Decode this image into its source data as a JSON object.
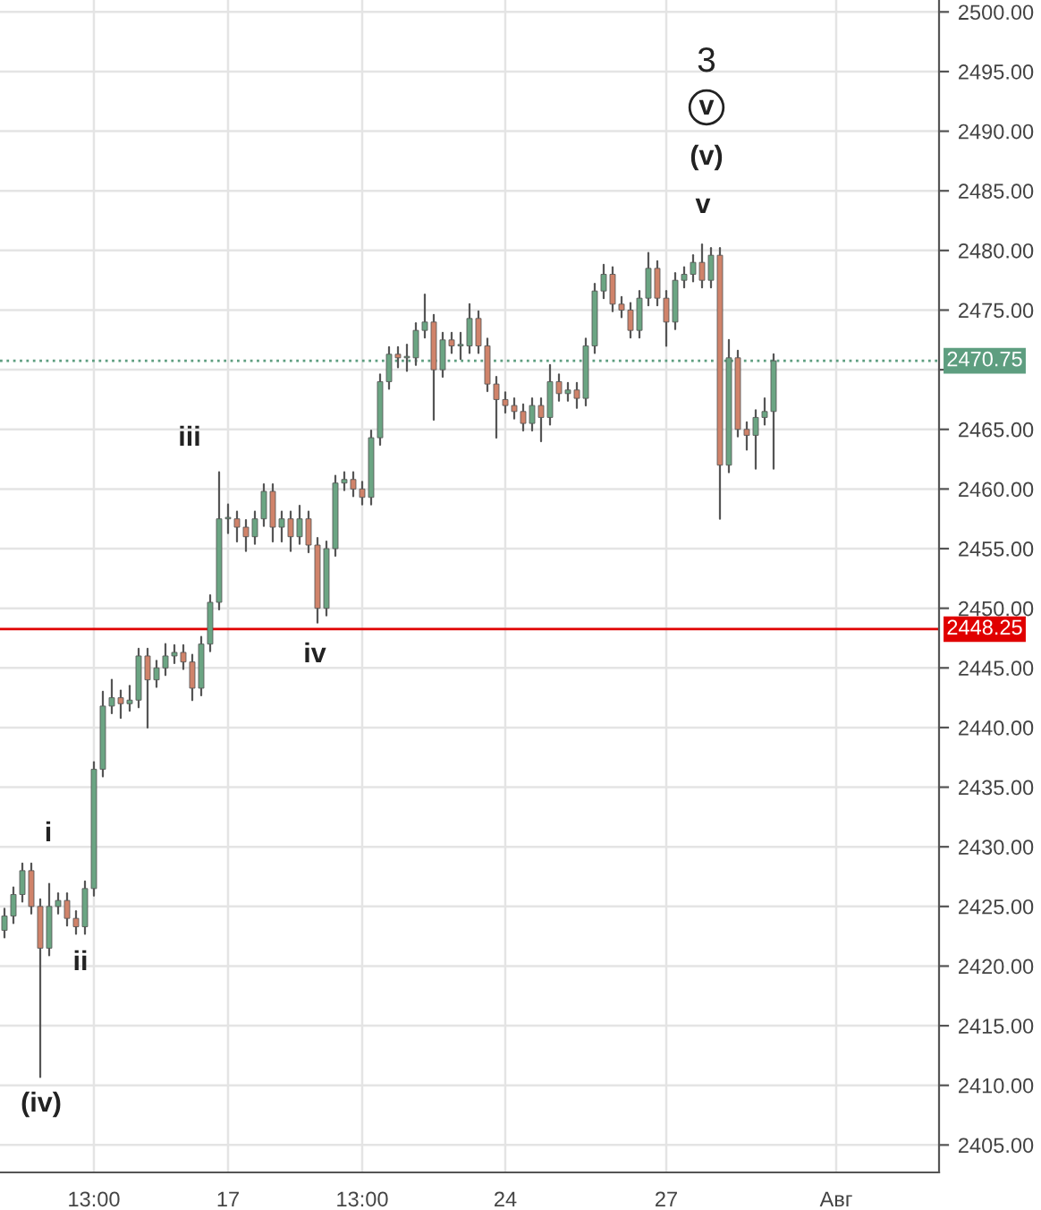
{
  "chart_data": {
    "type": "candlestick",
    "categories": [
      null,
      null,
      null,
      null,
      null,
      null,
      null,
      null,
      null,
      null,
      "13:00",
      null,
      null,
      null,
      null,
      null,
      null,
      null,
      null,
      null,
      null,
      null,
      null,
      null,
      null,
      "17",
      null,
      null,
      null,
      null,
      null,
      null,
      null,
      null,
      null,
      null,
      null,
      null,
      null,
      null,
      "13:00",
      null,
      null,
      null,
      null,
      null,
      null,
      null,
      null,
      null,
      null,
      null,
      null,
      null,
      null,
      null,
      "24",
      null,
      null,
      null,
      null,
      null,
      null,
      null,
      null,
      null,
      null,
      null,
      null,
      null,
      null,
      null,
      null,
      null,
      "27",
      null,
      null,
      null,
      null,
      null,
      null,
      null,
      null,
      null,
      null,
      null,
      null,
      null,
      null,
      null,
      null,
      null,
      null,
      "Авг",
      null,
      null,
      null,
      null,
      null,
      null,
      null,
      null,
      null,
      null,
      null
    ],
    "ohlc": [
      [
        2423,
        2424.8,
        2422.4,
        2424.2
      ],
      [
        2424.2,
        2426.6,
        2423.6,
        2426
      ],
      [
        2426,
        2428.6,
        2425.4,
        2428
      ],
      [
        2428,
        2428.6,
        2424.4,
        2425
      ],
      [
        2425,
        2425.6,
        2410.7,
        2421.5
      ],
      [
        2421.5,
        2426.9,
        2420.9,
        2425
      ],
      [
        2425,
        2426.1,
        2424.4,
        2425.5
      ],
      [
        2425.5,
        2426.1,
        2423.4,
        2424
      ],
      [
        2424,
        2424.6,
        2422.7,
        2423.3
      ],
      [
        2423.3,
        2427.1,
        2422.7,
        2426.5
      ],
      [
        2426.5,
        2437.1,
        2425.9,
        2436.5
      ],
      [
        2436.5,
        2443,
        2435.9,
        2441.8
      ],
      [
        2441.8,
        2444,
        2441.2,
        2442.5
      ],
      [
        2442.5,
        2443.1,
        2440.8,
        2442
      ],
      [
        2442,
        2443.5,
        2441.4,
        2442.3
      ],
      [
        2442.3,
        2446.6,
        2441.7,
        2446
      ],
      [
        2446,
        2446.6,
        2440,
        2444
      ],
      [
        2444,
        2445.6,
        2443.4,
        2445
      ],
      [
        2445,
        2447,
        2444.4,
        2446
      ],
      [
        2446,
        2446.9,
        2445.4,
        2446.3
      ],
      [
        2446.3,
        2446.9,
        2444.9,
        2445.5
      ],
      [
        2445.5,
        2446.1,
        2442.3,
        2443.3
      ],
      [
        2443.3,
        2447.6,
        2442.7,
        2447
      ],
      [
        2447,
        2451.1,
        2446.4,
        2450.5
      ],
      [
        2450.5,
        2461.4,
        2449.9,
        2457.5
      ],
      [
        2457.5,
        2458.7,
        2456.3,
        2457.5
      ],
      [
        2457.5,
        2458.1,
        2455.6,
        2456.8
      ],
      [
        2456.8,
        2457.4,
        2454.8,
        2456
      ],
      [
        2456,
        2458.1,
        2455.4,
        2457.5
      ],
      [
        2457.5,
        2460.4,
        2456.9,
        2459.8
      ],
      [
        2459.8,
        2460.4,
        2455.6,
        2456.8
      ],
      [
        2456.8,
        2458.1,
        2455.6,
        2457.5
      ],
      [
        2457.5,
        2458.1,
        2454.8,
        2456
      ],
      [
        2456,
        2458.6,
        2455.4,
        2457.5
      ],
      [
        2457.5,
        2458.1,
        2454.7,
        2455.3
      ],
      [
        2455.3,
        2455.9,
        2448.8,
        2450
      ],
      [
        2450,
        2455.6,
        2449.4,
        2455
      ],
      [
        2455,
        2461.1,
        2454.4,
        2460.5
      ],
      [
        2460.5,
        2461.4,
        2459.9,
        2460.8
      ],
      [
        2460.8,
        2461.4,
        2459.4,
        2460
      ],
      [
        2460,
        2460.6,
        2458.7,
        2459.3
      ],
      [
        2459.3,
        2464.9,
        2458.7,
        2464.3
      ],
      [
        2464.3,
        2469.6,
        2463.7,
        2469
      ],
      [
        2469,
        2471.9,
        2468.4,
        2471.3
      ],
      [
        2471.3,
        2471.9,
        2470.2,
        2471
      ],
      [
        2471,
        2472.1,
        2469.9,
        2471
      ],
      [
        2471,
        2473.9,
        2470.4,
        2473.3
      ],
      [
        2473.3,
        2476.3,
        2472.7,
        2474
      ],
      [
        2474,
        2474.6,
        2465.8,
        2470
      ],
      [
        2470,
        2473.1,
        2469.4,
        2472.5
      ],
      [
        2472.5,
        2473.1,
        2471.4,
        2472
      ],
      [
        2472,
        2473.1,
        2470.9,
        2472
      ],
      [
        2472,
        2475.5,
        2471.4,
        2474.3
      ],
      [
        2474.3,
        2474.9,
        2471.4,
        2472
      ],
      [
        2472,
        2472.6,
        2468.2,
        2468.8
      ],
      [
        2468.8,
        2469.4,
        2464.3,
        2467.5
      ],
      [
        2467.5,
        2468.1,
        2466.4,
        2467
      ],
      [
        2467,
        2467.6,
        2465.9,
        2466.5
      ],
      [
        2466.5,
        2467.1,
        2464.9,
        2465.5
      ],
      [
        2465.5,
        2467.6,
        2464.9,
        2467
      ],
      [
        2467,
        2467.6,
        2464,
        2466
      ],
      [
        2466,
        2470.4,
        2465.4,
        2469
      ],
      [
        2469,
        2469.6,
        2467.4,
        2468
      ],
      [
        2468,
        2468.9,
        2467.4,
        2468.3
      ],
      [
        2468.3,
        2468.9,
        2466.8,
        2467.6
      ],
      [
        2467.6,
        2472.6,
        2467,
        2472
      ],
      [
        2472,
        2477.2,
        2471.4,
        2476.6
      ],
      [
        2476.6,
        2478.8,
        2476,
        2478
      ],
      [
        2478,
        2478.6,
        2474.9,
        2475.5
      ],
      [
        2475.5,
        2476.1,
        2474.4,
        2475
      ],
      [
        2475,
        2475.6,
        2472.7,
        2473.3
      ],
      [
        2473.3,
        2476.6,
        2472.7,
        2476
      ],
      [
        2476,
        2479.8,
        2475.4,
        2478.5
      ],
      [
        2478.5,
        2479.1,
        2475.4,
        2476
      ],
      [
        2476,
        2476.6,
        2472,
        2474
      ],
      [
        2474,
        2478.1,
        2473.4,
        2477.5
      ],
      [
        2477.5,
        2478.6,
        2476.9,
        2478
      ],
      [
        2478,
        2479.6,
        2477.4,
        2479
      ],
      [
        2479,
        2480.5,
        2476.9,
        2477.5
      ],
      [
        2477.5,
        2480.2,
        2476.9,
        2479.6
      ],
      [
        2479.6,
        2480.2,
        2457.5,
        2462
      ],
      [
        2462,
        2472.5,
        2461.4,
        2471
      ],
      [
        2471,
        2471.6,
        2464.4,
        2465
      ],
      [
        2465,
        2465.6,
        2463.3,
        2464.5
      ],
      [
        2464.5,
        2466.6,
        2461.7,
        2466
      ],
      [
        2466,
        2467.6,
        2465.4,
        2466.5
      ],
      [
        2466.5,
        2471.3,
        2461.7,
        2470.75
      ],
      null,
      null,
      null,
      null,
      null,
      null,
      null,
      null,
      null,
      null,
      null,
      null,
      null,
      null,
      null,
      null,
      null,
      null
    ],
    "colors": [
      "#6ba583",
      "#6ba583",
      "#6ba583",
      "#d0836a",
      "#d0836a",
      "#6ba583",
      "#6ba583",
      "#d0836a",
      "#d0836a",
      "#6ba583",
      "#6ba583",
      "#6ba583",
      "#6ba583",
      "#d0836a",
      "#6ba583",
      "#6ba583",
      "#d0836a",
      "#6ba583",
      "#6ba583",
      "#6ba583",
      "#d0836a",
      "#d0836a",
      "#6ba583",
      "#6ba583",
      "#6ba583",
      "#6ba583",
      "#d0836a",
      "#d0836a",
      "#6ba583",
      "#6ba583",
      "#d0836a",
      "#6ba583",
      "#d0836a",
      "#6ba583",
      "#d0836a",
      "#d0836a",
      "#6ba583",
      "#6ba583",
      "#6ba583",
      "#d0836a",
      "#d0836a",
      "#6ba583",
      "#6ba583",
      "#6ba583",
      "#d0836a",
      "#6ba583",
      "#6ba583",
      "#6ba583",
      "#d0836a",
      "#6ba583",
      "#d0836a",
      "#6ba583",
      "#6ba583",
      "#d0836a",
      "#d0836a",
      "#d0836a",
      "#d0836a",
      "#d0836a",
      "#d0836a",
      "#6ba583",
      "#d0836a",
      "#6ba583",
      "#d0836a",
      "#6ba583",
      "#d0836a",
      "#6ba583",
      "#6ba583",
      "#6ba583",
      "#d0836a",
      "#d0836a",
      "#d0836a",
      "#6ba583",
      "#6ba583",
      "#d0836a",
      "#d0836a",
      "#6ba583",
      "#6ba583",
      "#6ba583",
      "#d0836a",
      "#6ba583",
      "#d0836a",
      "#6ba583",
      "#d0836a",
      "#d0836a",
      "#6ba583",
      "#6ba583",
      "#6ba583",
      null,
      null,
      null,
      null,
      null,
      null,
      null,
      null,
      null,
      null,
      null,
      null,
      null,
      null,
      null,
      null,
      null,
      null
    ],
    "ylim": [
      2402.7,
      2501
    ],
    "yticks": [
      {
        "value": 2405,
        "label": "2405.00"
      },
      {
        "value": 2410,
        "label": "2410.00"
      },
      {
        "value": 2415,
        "label": "2415.00"
      },
      {
        "value": 2420,
        "label": "2420.00"
      },
      {
        "value": 2425,
        "label": "2425.00"
      },
      {
        "value": 2430,
        "label": "2430.00"
      },
      {
        "value": 2435,
        "label": "2435.00"
      },
      {
        "value": 2440,
        "label": "2440.00"
      },
      {
        "value": 2445,
        "label": "2445.00"
      },
      {
        "value": 2450,
        "label": "2450.00"
      },
      {
        "value": 2455,
        "label": "2455.00"
      },
      {
        "value": 2460,
        "label": "2460.00"
      },
      {
        "value": 2465,
        "label": "2465.00"
      },
      {
        "value": 2470,
        "label": null
      },
      {
        "value": 2475,
        "label": "2475.00"
      },
      {
        "value": 2480,
        "label": "2480.00"
      },
      {
        "value": 2485,
        "label": "2485.00"
      },
      {
        "value": 2490,
        "label": "2490.00"
      },
      {
        "value": 2495,
        "label": "2495.00"
      },
      {
        "value": 2500,
        "label": "2500.00"
      }
    ],
    "grid": true,
    "ref_lines": [
      {
        "axis": "y",
        "value": 2470.75,
        "label": "2470.75",
        "color": "#5e9e80",
        "line_style": "dotted"
      },
      {
        "axis": "y",
        "value": 2448.25,
        "label": "2448.25",
        "color": "#e00000",
        "line_style": "solid"
      }
    ],
    "annotations": [
      "3",
      "v",
      "(v)",
      "v",
      "iii",
      "iv",
      "i",
      "ii",
      "(iv)"
    ]
  }
}
